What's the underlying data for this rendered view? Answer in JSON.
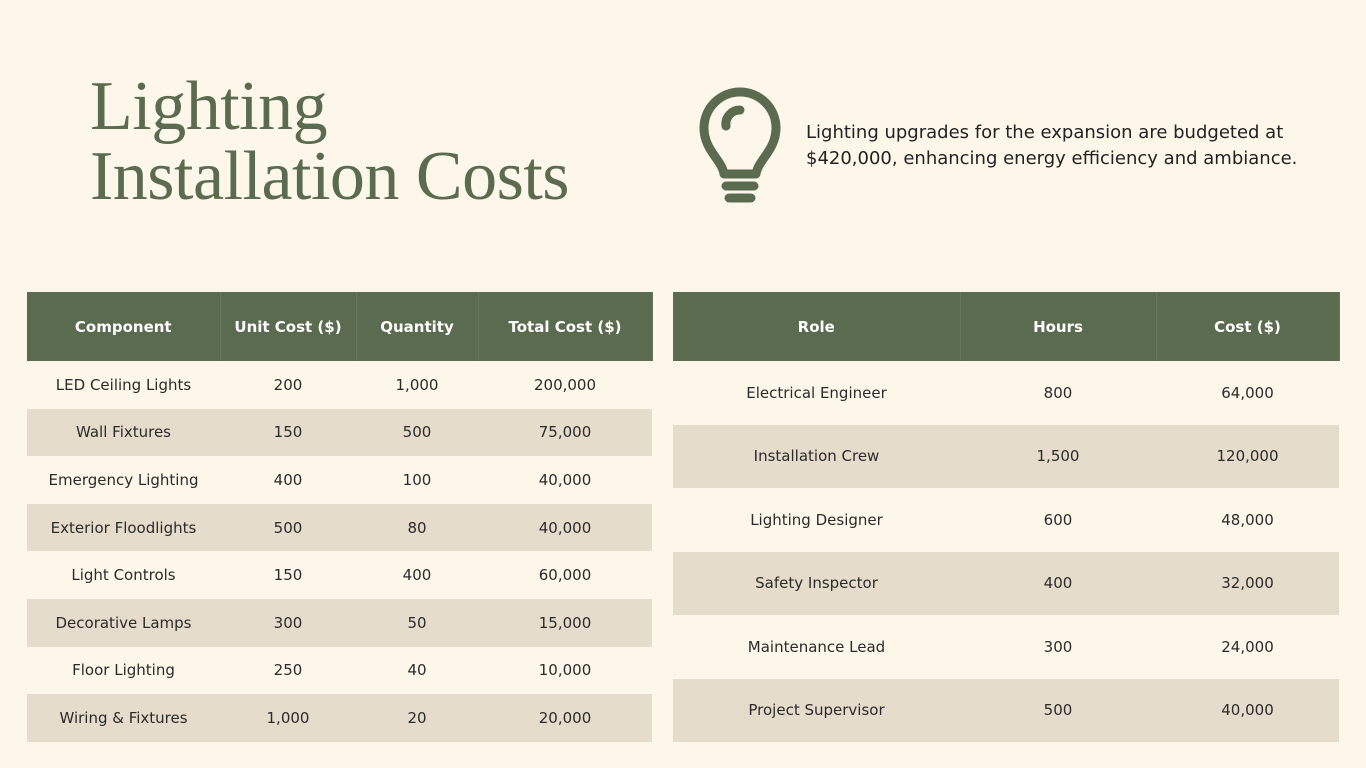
{
  "header": {
    "title_lines": [
      "Lighting",
      "Installation Costs"
    ],
    "description": "Lighting upgrades for the expansion are budgeted at $420,000, enhancing energy efficiency and ambiance."
  },
  "components_table": {
    "columns": [
      "Component",
      "Unit Cost ($)",
      "Quantity",
      "Total Cost ($)"
    ],
    "rows": [
      [
        "LED Ceiling Lights",
        "200",
        "1,000",
        "200,000"
      ],
      [
        "Wall Fixtures",
        "150",
        "500",
        "75,000"
      ],
      [
        "Emergency Lighting",
        "400",
        "100",
        "40,000"
      ],
      [
        "Exterior Floodlights",
        "500",
        "80",
        "40,000"
      ],
      [
        "Light Controls",
        "150",
        "400",
        "60,000"
      ],
      [
        "Decorative Lamps",
        "300",
        "50",
        "15,000"
      ],
      [
        "Floor Lighting",
        "250",
        "40",
        "10,000"
      ],
      [
        "Wiring & Fixtures",
        "1,000",
        "20",
        "20,000"
      ]
    ]
  },
  "labor_table": {
    "columns": [
      "Role",
      "Hours",
      "Cost ($)"
    ],
    "rows": [
      [
        "Electrical Engineer",
        "800",
        "64,000"
      ],
      [
        "Installation Crew",
        "1,500",
        "120,000"
      ],
      [
        "Lighting Designer",
        "600",
        "48,000"
      ],
      [
        "Safety Inspector",
        "400",
        "32,000"
      ],
      [
        "Maintenance Lead",
        "300",
        "24,000"
      ],
      [
        "Project Supervisor",
        "500",
        "40,000"
      ]
    ]
  }
}
